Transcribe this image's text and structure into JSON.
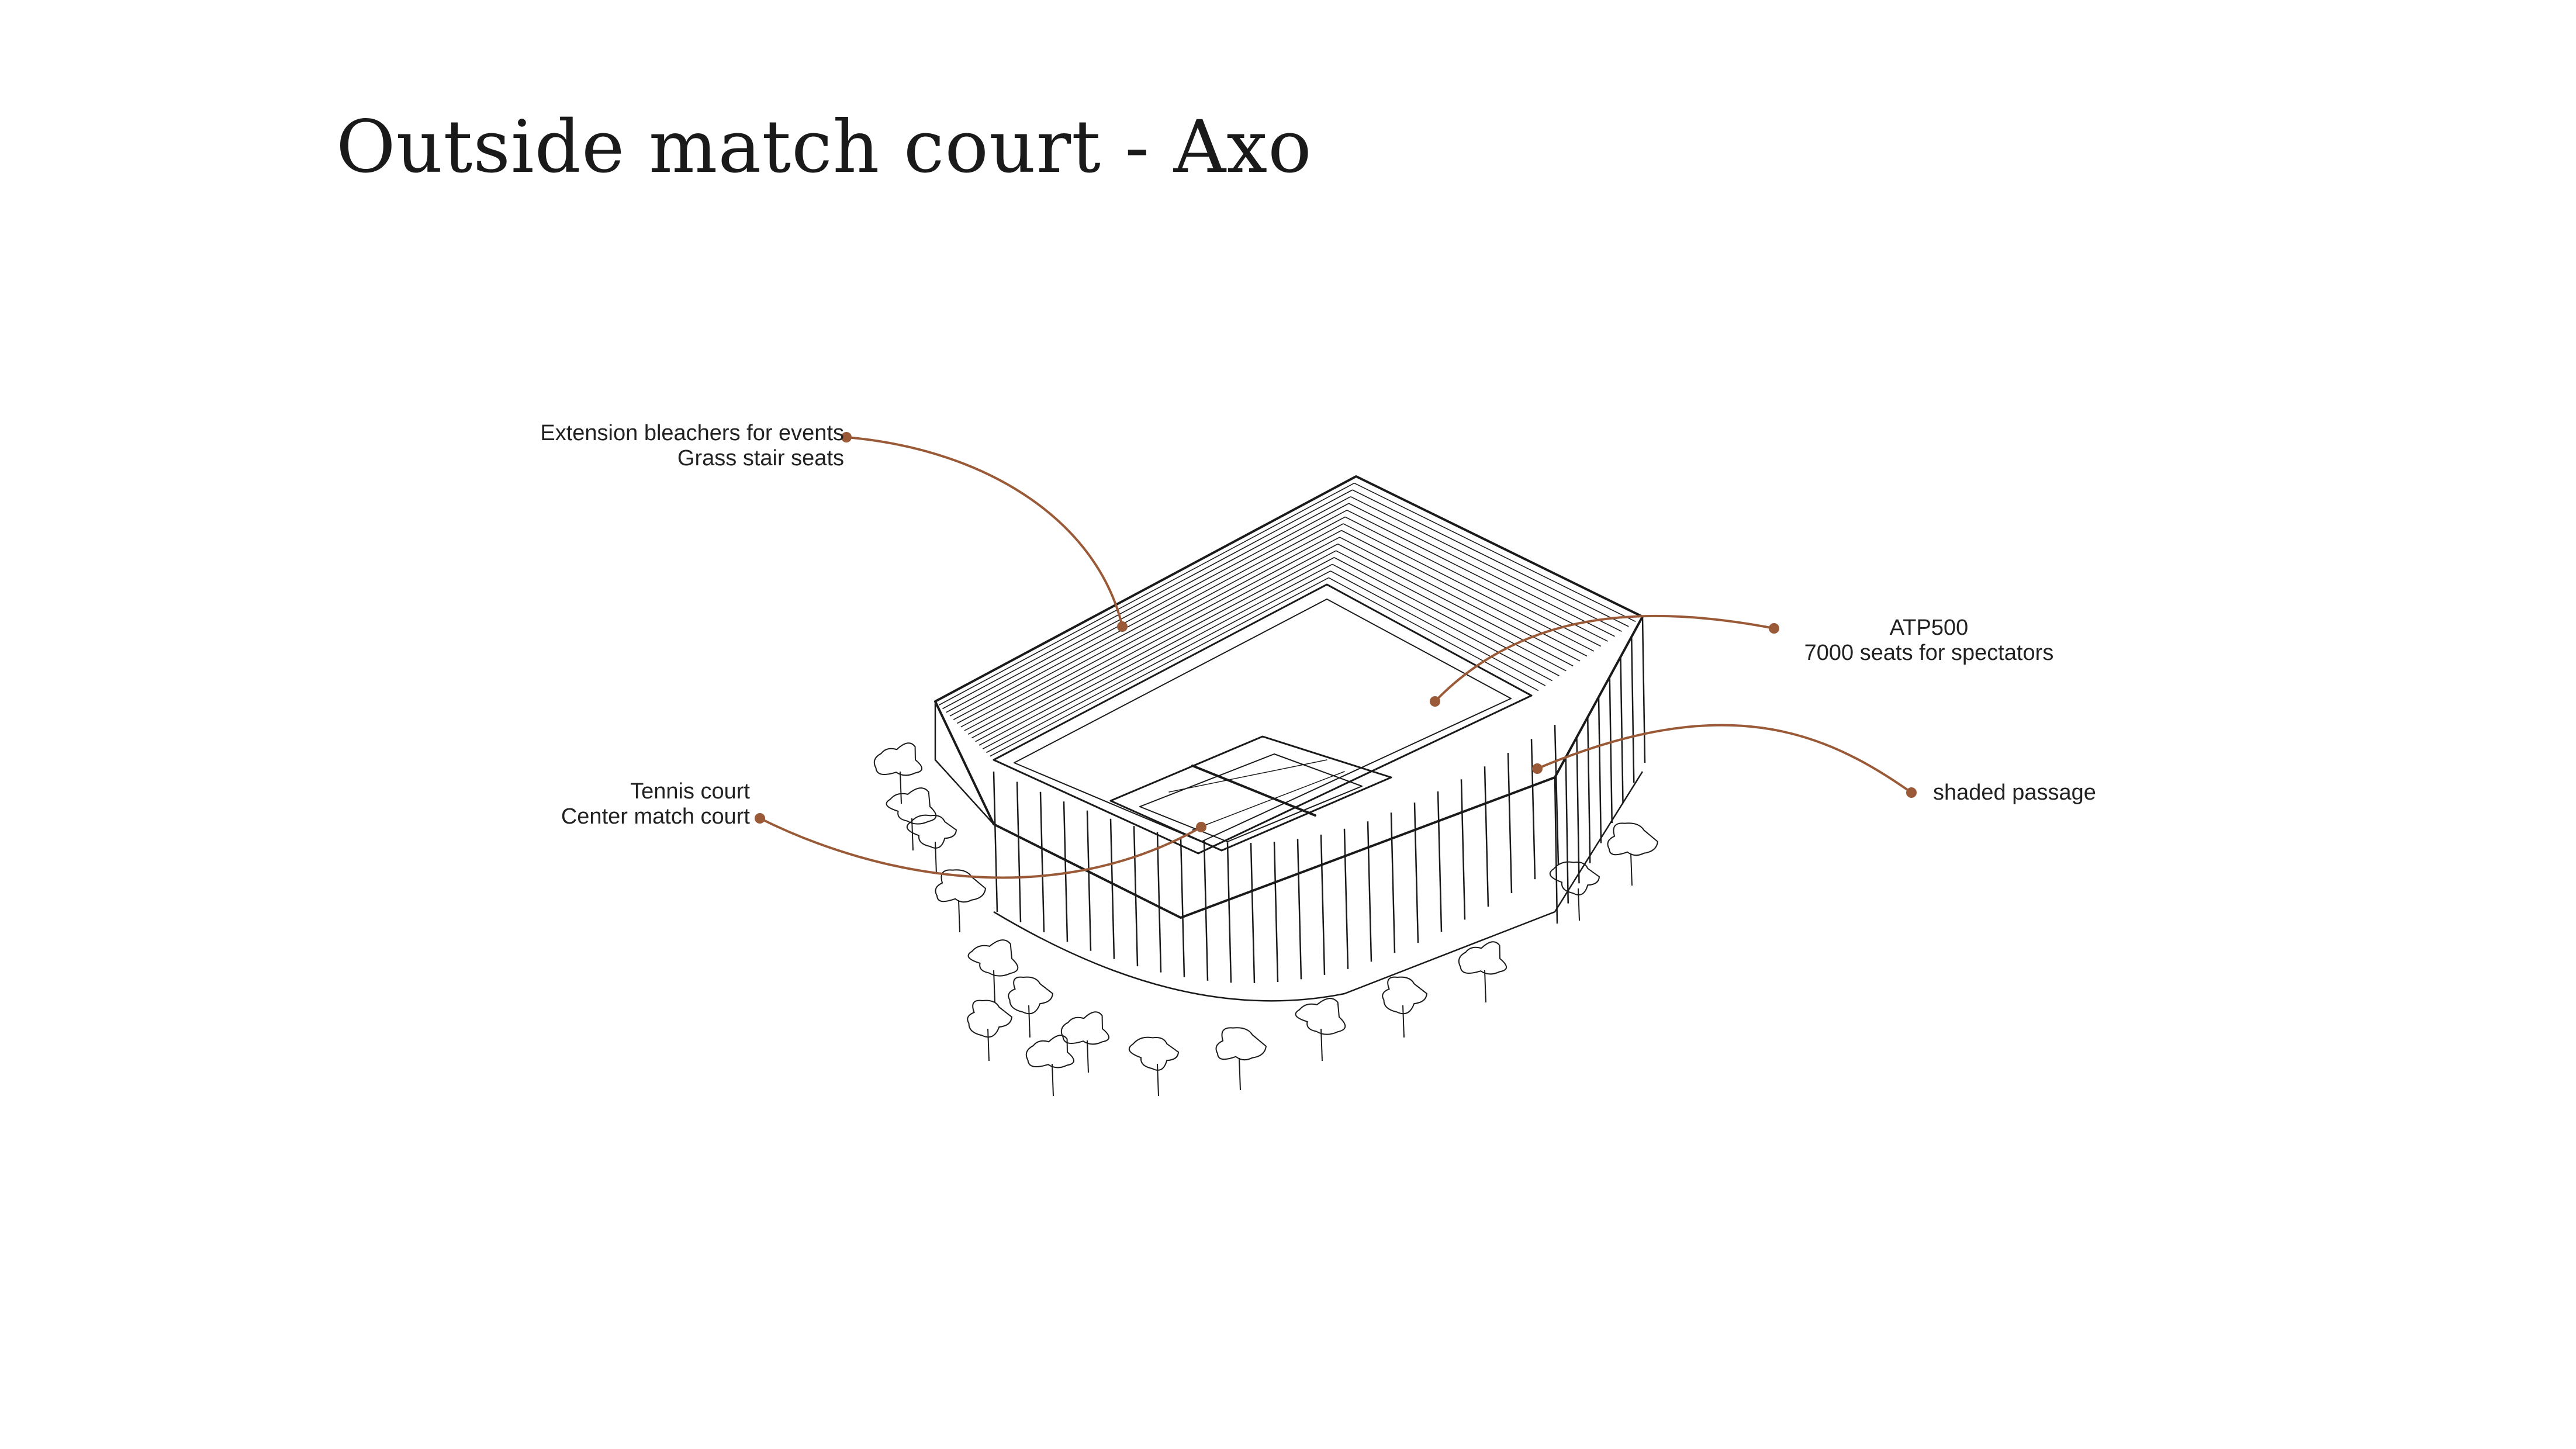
{
  "title": "Outside match court - Axo",
  "colors": {
    "leader": "#9a5a37",
    "ink": "#1a1a1a",
    "background": "#ffffff"
  },
  "annotations": {
    "bleachers": {
      "line1": "Extension bleachers for events",
      "line2": "Grass stair seats"
    },
    "court": {
      "line1": "Tennis court",
      "line2": "Center match court"
    },
    "atp": {
      "line1": "ATP500",
      "line2": "7000 seats for spectators"
    },
    "passage": {
      "line1": "shaded passage"
    }
  }
}
